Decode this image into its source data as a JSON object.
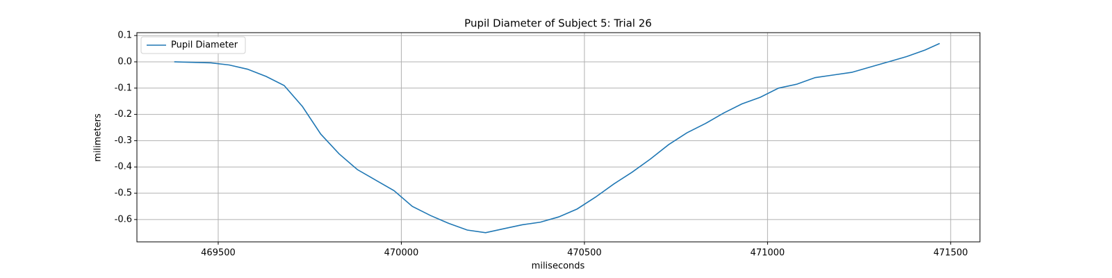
{
  "chart_data": {
    "type": "line",
    "title": "Pupil Diameter of Subject 5: Trial 26",
    "xlabel": "miliseconds",
    "ylabel": "milimeters",
    "x": [
      469380,
      469430,
      469480,
      469530,
      469580,
      469630,
      469680,
      469730,
      469780,
      469830,
      469880,
      469930,
      469980,
      470030,
      470080,
      470130,
      470180,
      470230,
      470280,
      470330,
      470380,
      470430,
      470480,
      470530,
      470580,
      470630,
      470680,
      470730,
      470780,
      470830,
      470880,
      470930,
      470980,
      471030,
      471080,
      471130,
      471180,
      471230,
      471280,
      471330,
      471380,
      471430,
      471470
    ],
    "series": [
      {
        "name": "Pupil Diameter",
        "color": "#1f77b4",
        "values": [
          0.0,
          -0.002,
          -0.004,
          -0.012,
          -0.028,
          -0.055,
          -0.09,
          -0.17,
          -0.275,
          -0.35,
          -0.41,
          -0.45,
          -0.49,
          -0.55,
          -0.585,
          -0.615,
          -0.64,
          -0.65,
          -0.635,
          -0.62,
          -0.61,
          -0.59,
          -0.56,
          -0.515,
          -0.465,
          -0.42,
          -0.37,
          -0.315,
          -0.27,
          -0.235,
          -0.195,
          -0.16,
          -0.135,
          -0.1,
          -0.085,
          -0.06,
          -0.05,
          -0.04,
          -0.02,
          0.0,
          0.02,
          0.045,
          0.07
        ]
      }
    ],
    "xlim": [
      469278,
      471580
    ],
    "ylim": [
      -0.685,
      0.111
    ],
    "xticks": [
      469500,
      470000,
      470500,
      471000,
      471500
    ],
    "yticks": [
      -0.6,
      -0.5,
      -0.4,
      -0.3,
      -0.2,
      -0.1,
      {
        "value": 0,
        "label": "0.0"
      },
      0.1
    ],
    "grid": true,
    "legend": "upper-left"
  }
}
